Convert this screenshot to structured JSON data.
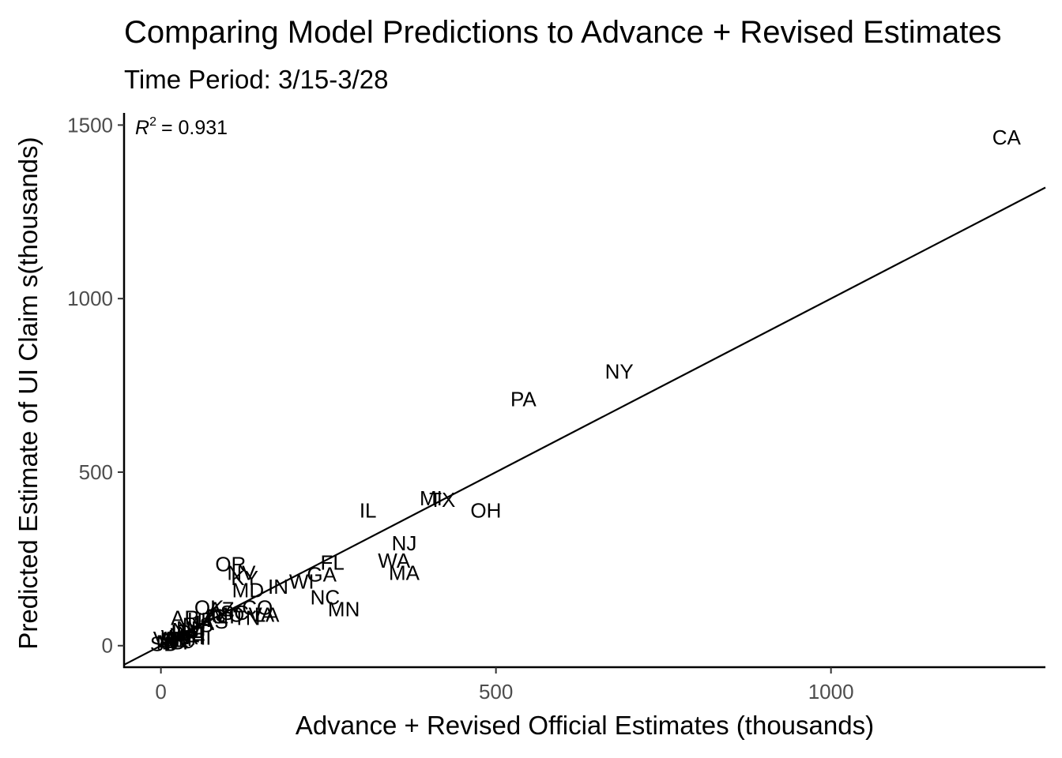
{
  "chart_data": {
    "type": "scatter",
    "title": "Comparing Model Predictions to Advance + Revised Estimates",
    "subtitle": "Time Period:  3/15-3/28",
    "xlabel": "Advance + Revised Official Estimates (thousands)",
    "ylabel": "Predicted Estimate of UI Claim s(thousands)",
    "r2_label": "= 0.931",
    "xlim": [
      -55,
      1320
    ],
    "ylim": [
      -62,
      1535
    ],
    "xticks": [
      0,
      500,
      1000
    ],
    "yticks": [
      0,
      500,
      1000,
      1500
    ],
    "grid": false,
    "fit_line": {
      "intercept": 0,
      "slope": 1
    },
    "points": [
      {
        "label": "CA",
        "x": 1262,
        "y": 1460
      },
      {
        "label": "NY",
        "x": 684,
        "y": 785
      },
      {
        "label": "PA",
        "x": 541,
        "y": 705
      },
      {
        "label": "MI",
        "x": 403,
        "y": 420
      },
      {
        "label": "TX",
        "x": 420,
        "y": 415
      },
      {
        "label": "OH",
        "x": 485,
        "y": 385
      },
      {
        "label": "IL",
        "x": 309,
        "y": 385
      },
      {
        "label": "NJ",
        "x": 363,
        "y": 290
      },
      {
        "label": "WA",
        "x": 348,
        "y": 240
      },
      {
        "label": "MA",
        "x": 363,
        "y": 205
      },
      {
        "label": "FL",
        "x": 256,
        "y": 235
      },
      {
        "label": "GA",
        "x": 240,
        "y": 200
      },
      {
        "label": "WI",
        "x": 210,
        "y": 180
      },
      {
        "label": "IN",
        "x": 175,
        "y": 165
      },
      {
        "label": "NC",
        "x": 245,
        "y": 135
      },
      {
        "label": "MN",
        "x": 273,
        "y": 100
      },
      {
        "label": "OR",
        "x": 104,
        "y": 230
      },
      {
        "label": "NV",
        "x": 120,
        "y": 205
      },
      {
        "label": "KY",
        "x": 125,
        "y": 190
      },
      {
        "label": "MD",
        "x": 130,
        "y": 155
      },
      {
        "label": "OK",
        "x": 72,
        "y": 105
      },
      {
        "label": "AZ",
        "x": 90,
        "y": 100
      },
      {
        "label": "CO",
        "x": 144,
        "y": 105
      },
      {
        "label": "SC",
        "x": 110,
        "y": 90
      },
      {
        "label": "VA",
        "x": 150,
        "y": 85
      },
      {
        "label": "TN",
        "x": 128,
        "y": 75
      },
      {
        "label": "LA",
        "x": 158,
        "y": 85
      },
      {
        "label": "MO",
        "x": 100,
        "y": 85
      },
      {
        "label": "AL",
        "x": 82,
        "y": 80
      },
      {
        "label": "CT",
        "x": 95,
        "y": 80
      },
      {
        "label": "UT",
        "x": 60,
        "y": 70
      },
      {
        "label": "AR",
        "x": 36,
        "y": 75
      },
      {
        "label": "KS",
        "x": 80,
        "y": 65
      },
      {
        "label": "IA",
        "x": 65,
        "y": 60
      },
      {
        "label": "MS",
        "x": 55,
        "y": 55
      },
      {
        "label": "NH",
        "x": 45,
        "y": 45
      },
      {
        "label": "NM",
        "x": 40,
        "y": 40
      },
      {
        "label": "ID",
        "x": 30,
        "y": 35
      },
      {
        "label": "NE",
        "x": 45,
        "y": 30
      },
      {
        "label": "ME",
        "x": 35,
        "y": 25
      },
      {
        "label": "RI",
        "x": 50,
        "y": 20
      },
      {
        "label": "HI",
        "x": 60,
        "y": 18
      },
      {
        "label": "WV",
        "x": 25,
        "y": 20
      },
      {
        "label": "MT",
        "x": 30,
        "y": 15
      },
      {
        "label": "DE",
        "x": 20,
        "y": 12
      },
      {
        "label": "VT",
        "x": 8,
        "y": 15
      },
      {
        "label": "SD",
        "x": 5,
        "y": 0
      },
      {
        "label": "ND",
        "x": 15,
        "y": 5
      },
      {
        "label": "AK",
        "x": 18,
        "y": 10
      },
      {
        "label": "WY",
        "x": 22,
        "y": 5
      },
      {
        "label": "DC",
        "x": 28,
        "y": 8
      }
    ]
  }
}
